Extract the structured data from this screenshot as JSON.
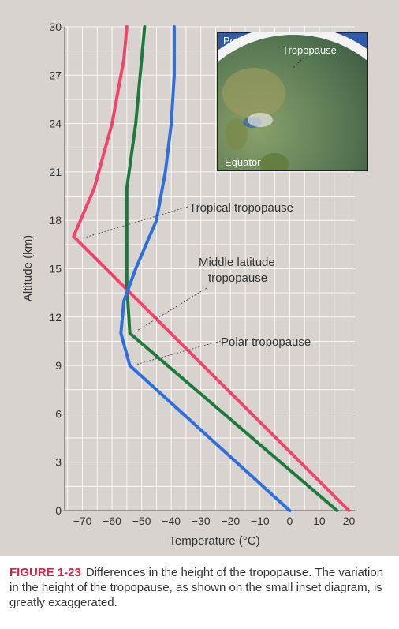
{
  "chart_data": {
    "type": "line",
    "xlabel": "Temperature (°C)",
    "ylabel": "Altitude (km)",
    "xlim": [
      -76,
      22
    ],
    "ylim": [
      0,
      30
    ],
    "x_ticks": [
      -70,
      -60,
      -50,
      -40,
      -30,
      -20,
      -10,
      0,
      10,
      20
    ],
    "y_ticks": [
      0,
      3,
      6,
      9,
      12,
      15,
      18,
      21,
      24,
      27,
      30
    ],
    "grid": true,
    "series": [
      {
        "color": "#f0456a",
        "points": [
          [
            20,
            0
          ],
          [
            -73,
            17
          ],
          [
            -66,
            20
          ],
          [
            -60,
            24
          ],
          [
            -56,
            28
          ],
          [
            -55,
            30
          ]
        ]
      },
      {
        "color": "#1e7a3c",
        "points": [
          [
            16,
            0
          ],
          [
            -54,
            11
          ],
          [
            -55,
            14
          ],
          [
            -55,
            17
          ],
          [
            -55,
            20
          ],
          [
            -52,
            24
          ],
          [
            -50,
            28
          ],
          [
            -49,
            30
          ]
        ]
      },
      {
        "color": "#2f6fdc",
        "points": [
          [
            0,
            0
          ],
          [
            -54,
            9
          ],
          [
            -57,
            11
          ],
          [
            -56,
            13
          ],
          [
            -52,
            15
          ],
          [
            -45,
            18
          ],
          [
            -42,
            21
          ],
          [
            -40,
            24
          ],
          [
            -39,
            27
          ],
          [
            -39,
            30
          ]
        ]
      }
    ],
    "annotations": [
      {
        "text": "Tropical tropopause"
      },
      {
        "text": "Middle latitude"
      },
      {
        "text": "tropopause"
      },
      {
        "text": "Polar tropopause"
      }
    ]
  },
  "inset": {
    "pole_label": "Pole",
    "tropopause_label": "Tropopause",
    "equator_label": "Equator"
  },
  "caption": {
    "figure_label": "FIGURE 1-23",
    "text": "Differences in the height of the tropopause. The variation in the height of the tropopause, as shown on the small inset diagram, is greatly exaggerated."
  },
  "colors": {
    "tropical": "#f0456a",
    "midlatitude": "#1e7a3c",
    "polar": "#2f6fdc",
    "caption_accent": "#d4244a",
    "panel_bg": "#d8d3cf"
  }
}
